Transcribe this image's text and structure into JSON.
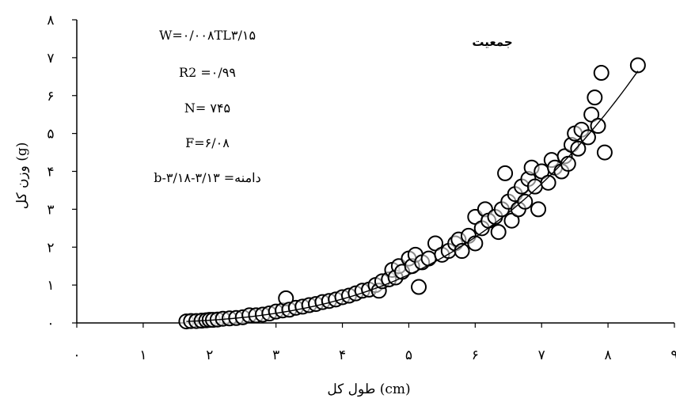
{
  "chart_data": {
    "type": "scatter",
    "title": "جمعیت",
    "xlabel": "طول کل (cm)",
    "ylabel": "وزن کل (g)",
    "xlim": [
      0,
      9
    ],
    "ylim": [
      0,
      8
    ],
    "x_ticks": [
      0,
      1,
      2,
      3,
      4,
      5,
      6,
      7,
      8,
      9
    ],
    "x_tick_labels": [
      "۰",
      "۱",
      "۲",
      "۳",
      "۴",
      "۵",
      "۶",
      "۷",
      "۸",
      "۹"
    ],
    "y_ticks": [
      0,
      1,
      2,
      3,
      4,
      5,
      6,
      7,
      8
    ],
    "y_tick_labels": [
      "۰",
      "۱",
      "۲",
      "۳",
      "۴",
      "۵",
      "۶",
      "۷",
      "۸"
    ],
    "grid": false,
    "annotations": [
      "W=۰/۰۰۸TL۳/۱۵",
      "R2 =۰/۹۹",
      "N= ۷۴۵",
      "F=۶/۰۸",
      "b-دامنه= ۳/۱۳-۳/۱۸"
    ],
    "fit": {
      "a": 0.008,
      "b": 3.15,
      "x_range": [
        1.65,
        8.45
      ]
    },
    "series": [
      {
        "marker": "open-circle",
        "points": [
          [
            1.65,
            0.04
          ],
          [
            1.72,
            0.05
          ],
          [
            1.8,
            0.05
          ],
          [
            1.88,
            0.06
          ],
          [
            1.95,
            0.07
          ],
          [
            2.0,
            0.08
          ],
          [
            2.05,
            0.08
          ],
          [
            2.12,
            0.09
          ],
          [
            2.2,
            0.11
          ],
          [
            2.3,
            0.12
          ],
          [
            2.4,
            0.13
          ],
          [
            2.5,
            0.15
          ],
          [
            2.6,
            0.2
          ],
          [
            2.7,
            0.2
          ],
          [
            2.8,
            0.22
          ],
          [
            2.9,
            0.25
          ],
          [
            3.0,
            0.3
          ],
          [
            3.1,
            0.33
          ],
          [
            3.15,
            0.65
          ],
          [
            3.2,
            0.35
          ],
          [
            3.3,
            0.4
          ],
          [
            3.4,
            0.43
          ],
          [
            3.5,
            0.47
          ],
          [
            3.6,
            0.5
          ],
          [
            3.7,
            0.55
          ],
          [
            3.8,
            0.58
          ],
          [
            3.9,
            0.62
          ],
          [
            4.0,
            0.68
          ],
          [
            4.1,
            0.72
          ],
          [
            4.2,
            0.78
          ],
          [
            4.3,
            0.85
          ],
          [
            4.4,
            0.88
          ],
          [
            4.5,
            1.0
          ],
          [
            4.55,
            0.85
          ],
          [
            4.6,
            1.1
          ],
          [
            4.7,
            1.15
          ],
          [
            4.75,
            1.4
          ],
          [
            4.8,
            1.2
          ],
          [
            4.85,
            1.5
          ],
          [
            4.9,
            1.35
          ],
          [
            5.0,
            1.7
          ],
          [
            5.05,
            1.5
          ],
          [
            5.1,
            1.8
          ],
          [
            5.15,
            0.95
          ],
          [
            5.2,
            1.6
          ],
          [
            5.3,
            1.7
          ],
          [
            5.4,
            2.1
          ],
          [
            5.5,
            1.8
          ],
          [
            5.6,
            1.9
          ],
          [
            5.7,
            2.1
          ],
          [
            5.75,
            2.2
          ],
          [
            5.8,
            1.9
          ],
          [
            5.9,
            2.3
          ],
          [
            6.0,
            2.1
          ],
          [
            6.0,
            2.8
          ],
          [
            6.1,
            2.5
          ],
          [
            6.15,
            3.0
          ],
          [
            6.2,
            2.7
          ],
          [
            6.3,
            2.8
          ],
          [
            6.35,
            2.4
          ],
          [
            6.4,
            3.0
          ],
          [
            6.45,
            3.95
          ],
          [
            6.5,
            3.2
          ],
          [
            6.55,
            2.7
          ],
          [
            6.6,
            3.4
          ],
          [
            6.65,
            3.0
          ],
          [
            6.7,
            3.6
          ],
          [
            6.75,
            3.2
          ],
          [
            6.8,
            3.8
          ],
          [
            6.85,
            4.1
          ],
          [
            6.9,
            3.6
          ],
          [
            6.95,
            3.0
          ],
          [
            7.0,
            4.0
          ],
          [
            7.1,
            3.7
          ],
          [
            7.15,
            4.3
          ],
          [
            7.2,
            4.1
          ],
          [
            7.3,
            4.0
          ],
          [
            7.35,
            4.4
          ],
          [
            7.4,
            4.2
          ],
          [
            7.45,
            4.7
          ],
          [
            7.5,
            5.0
          ],
          [
            7.55,
            4.6
          ],
          [
            7.6,
            5.1
          ],
          [
            7.7,
            4.9
          ],
          [
            7.75,
            5.5
          ],
          [
            7.8,
            5.95
          ],
          [
            7.85,
            5.2
          ],
          [
            7.9,
            6.6
          ],
          [
            7.95,
            4.5
          ],
          [
            8.45,
            6.8
          ]
        ]
      }
    ]
  }
}
